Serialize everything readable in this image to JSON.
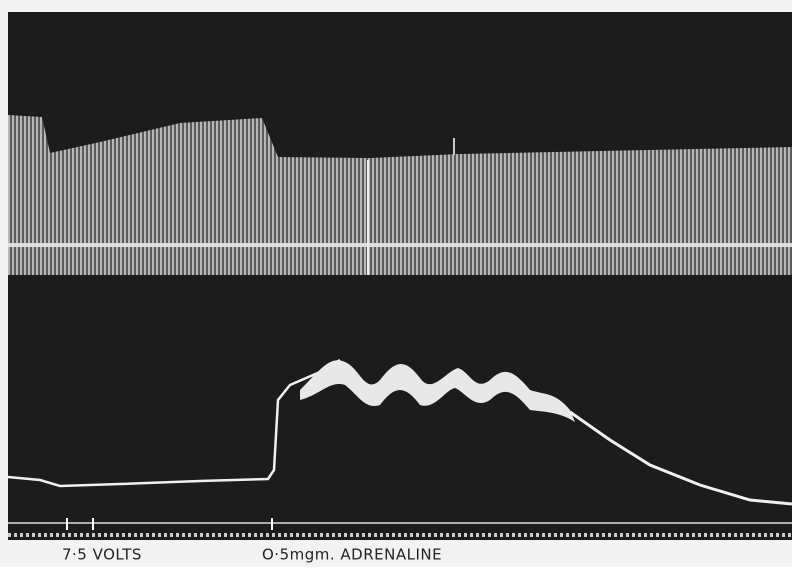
{
  "labels": {
    "stimulus": "7·5 VOLTS",
    "drug": "O·5mgm. ADRENALINE"
  }
}
